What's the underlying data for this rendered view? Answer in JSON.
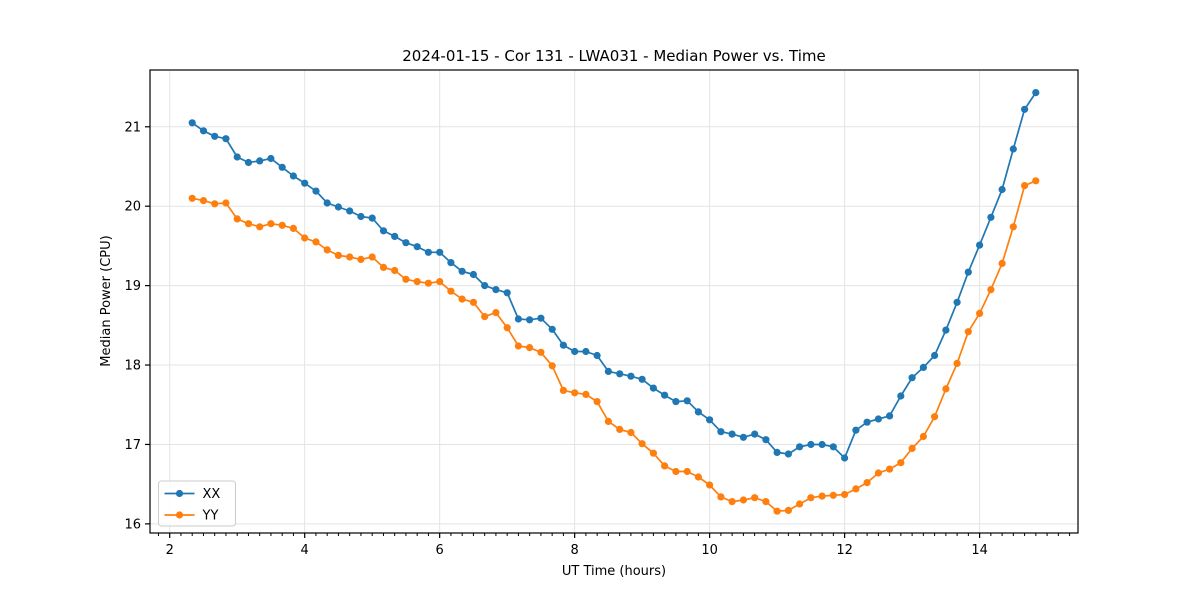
{
  "title": "2024-01-15 - Cor 131 - LWA031 - Median Power vs. Time",
  "colors": {
    "series_xx": "#1f77b4",
    "series_yy": "#ff7f0e",
    "grid": "#e3e3e3",
    "spine": "#000000",
    "legend_border": "#cccccc"
  },
  "chart_data": {
    "type": "line",
    "title": "2024-01-15 - Cor 131 - LWA031 - Median Power vs. Time",
    "xlabel": "UT Time (hours)",
    "ylabel": "Median Power (CPU)",
    "xlim": [
      1.708,
      15.458
    ],
    "ylim": [
      15.885,
      21.715
    ],
    "xticks": [
      2,
      4,
      6,
      8,
      10,
      12,
      14
    ],
    "yticks": [
      16,
      17,
      18,
      19,
      20,
      21
    ],
    "x_minor_step": 0.1667,
    "grid": true,
    "legend_position": "lower-left",
    "legend": [
      "XX",
      "YY"
    ],
    "x": [
      2.333,
      2.5,
      2.667,
      2.833,
      3.0,
      3.167,
      3.333,
      3.5,
      3.667,
      3.833,
      4.0,
      4.167,
      4.333,
      4.5,
      4.667,
      4.833,
      5.0,
      5.167,
      5.333,
      5.5,
      5.667,
      5.833,
      6.0,
      6.167,
      6.333,
      6.5,
      6.667,
      6.833,
      7.0,
      7.167,
      7.333,
      7.5,
      7.667,
      7.833,
      8.0,
      8.167,
      8.333,
      8.5,
      8.667,
      8.833,
      9.0,
      9.167,
      9.333,
      9.5,
      9.667,
      9.833,
      10.0,
      10.167,
      10.333,
      10.5,
      10.667,
      10.833,
      11.0,
      11.167,
      11.333,
      11.5,
      11.667,
      11.833,
      12.0,
      12.167,
      12.333,
      12.5,
      12.667,
      12.833,
      13.0,
      13.167,
      13.333,
      13.5,
      13.667,
      13.833,
      14.0,
      14.167,
      14.333,
      14.5,
      14.667,
      14.833
    ],
    "series": [
      {
        "name": "XX",
        "color": "#1f77b4",
        "values": [
          21.05,
          20.95,
          20.88,
          20.85,
          20.62,
          20.55,
          20.57,
          20.6,
          20.49,
          20.38,
          20.29,
          20.19,
          20.04,
          19.99,
          19.94,
          19.87,
          19.85,
          19.69,
          19.62,
          19.54,
          19.49,
          19.42,
          19.42,
          19.29,
          19.18,
          19.14,
          19.0,
          18.95,
          18.91,
          18.58,
          18.57,
          18.59,
          18.45,
          18.25,
          18.17,
          18.17,
          18.12,
          17.92,
          17.89,
          17.86,
          17.82,
          17.71,
          17.62,
          17.54,
          17.55,
          17.41,
          17.31,
          17.16,
          17.13,
          17.09,
          17.13,
          17.06,
          16.9,
          16.88,
          16.97,
          17.0,
          17.0,
          16.97,
          16.83,
          17.18,
          17.28,
          17.32,
          17.36,
          17.61,
          17.84,
          17.97,
          18.12,
          18.44,
          18.79,
          19.17,
          19.51,
          19.86,
          20.21,
          20.72,
          21.22,
          21.43
        ]
      },
      {
        "name": "YY",
        "color": "#ff7f0e",
        "values": [
          20.1,
          20.07,
          20.03,
          20.04,
          19.84,
          19.78,
          19.74,
          19.78,
          19.76,
          19.72,
          19.6,
          19.55,
          19.45,
          19.38,
          19.36,
          19.33,
          19.36,
          19.23,
          19.19,
          19.08,
          19.05,
          19.03,
          19.05,
          18.93,
          18.83,
          18.79,
          18.61,
          18.66,
          18.47,
          18.24,
          18.22,
          18.16,
          17.99,
          17.68,
          17.65,
          17.63,
          17.54,
          17.29,
          17.19,
          17.15,
          17.01,
          16.89,
          16.73,
          16.66,
          16.66,
          16.59,
          16.49,
          16.34,
          16.28,
          16.3,
          16.33,
          16.28,
          16.16,
          16.17,
          16.25,
          16.33,
          16.35,
          16.36,
          16.37,
          16.44,
          16.52,
          16.64,
          16.69,
          16.77,
          16.95,
          17.1,
          17.35,
          17.7,
          18.02,
          18.42,
          18.65,
          18.95,
          19.28,
          19.74,
          20.26,
          20.32
        ]
      }
    ]
  }
}
